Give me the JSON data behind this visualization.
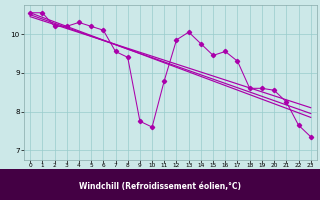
{
  "xlabel": "Windchill (Refroidissement éolien,°C)",
  "bg_color": "#cce8e8",
  "plot_bg": "#cce8e8",
  "xlabel_bg": "#440044",
  "xlabel_fg": "#ffffff",
  "line_color": "#aa00aa",
  "grid_color": "#99cccc",
  "xlim": [
    -0.5,
    23.5
  ],
  "ylim": [
    6.75,
    10.75
  ],
  "xticks": [
    0,
    1,
    2,
    3,
    4,
    5,
    6,
    7,
    8,
    9,
    10,
    11,
    12,
    13,
    14,
    15,
    16,
    17,
    18,
    19,
    20,
    21,
    22,
    23
  ],
  "yticks": [
    7,
    8,
    9,
    10
  ],
  "series1_x": [
    0,
    1,
    2,
    3,
    4,
    5,
    6,
    7,
    8,
    9,
    10,
    11,
    12,
    13,
    14,
    15,
    16,
    17,
    18,
    19,
    20,
    21,
    22,
    23
  ],
  "series1_y": [
    10.55,
    10.55,
    10.2,
    10.2,
    10.3,
    10.2,
    10.1,
    9.55,
    9.4,
    7.75,
    7.6,
    8.8,
    9.85,
    10.05,
    9.75,
    9.45,
    9.55,
    9.3,
    8.6,
    8.6,
    8.55,
    8.25,
    7.65,
    7.35
  ],
  "series2_x": [
    0,
    23
  ],
  "series2_y": [
    10.55,
    7.85
  ],
  "series3_x": [
    0,
    23
  ],
  "series3_y": [
    10.5,
    7.95
  ],
  "series4_x": [
    0,
    23
  ],
  "series4_y": [
    10.45,
    8.1
  ]
}
